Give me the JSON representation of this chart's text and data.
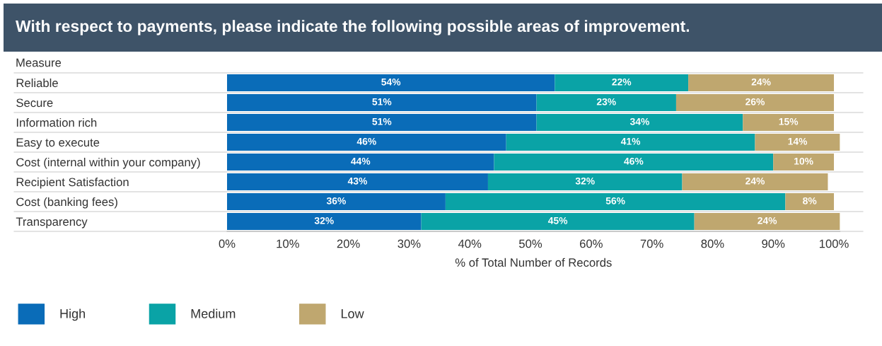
{
  "chart_data": {
    "type": "bar",
    "orientation": "horizontal",
    "stacked": true,
    "title": "With respect to payments, please indicate the following possible areas of improvement.",
    "ylabel": "Measure",
    "xlabel": "% of Total Number of Records",
    "categories": [
      "Reliable",
      "Secure",
      "Information rich",
      "Easy to execute",
      "Cost (internal within your company)",
      "Recipient Satisfaction",
      "Cost (banking fees)",
      "Transparency"
    ],
    "series": [
      {
        "name": "High",
        "color": "#0a6cb8",
        "values": [
          54,
          51,
          51,
          46,
          44,
          43,
          36,
          32
        ],
        "value_labels": [
          "54%",
          "51%",
          "51%",
          "46%",
          "44%",
          "43%",
          "36%",
          "32%"
        ]
      },
      {
        "name": "Medium",
        "color": "#0aa3a6",
        "values": [
          22,
          23,
          34,
          41,
          46,
          32,
          56,
          45
        ],
        "value_labels": [
          "22%",
          "23%",
          "34%",
          "41%",
          "46%",
          "32%",
          "56%",
          "45%"
        ]
      },
      {
        "name": "Low",
        "color": "#bfa76f",
        "values": [
          24,
          26,
          15,
          14,
          10,
          24,
          8,
          24
        ],
        "value_labels": [
          "24%",
          "26%",
          "15%",
          "14%",
          "10%",
          "24%",
          "8%",
          "24%"
        ]
      }
    ],
    "xlim": [
      0,
      101
    ],
    "xticks": [
      {
        "value": 0,
        "label": "0%"
      },
      {
        "value": 10,
        "label": "10%"
      },
      {
        "value": 20,
        "label": "20%"
      },
      {
        "value": 30,
        "label": "30%"
      },
      {
        "value": 40,
        "label": "40%"
      },
      {
        "value": 50,
        "label": "50%"
      },
      {
        "value": 60,
        "label": "60%"
      },
      {
        "value": 70,
        "label": "70%"
      },
      {
        "value": 80,
        "label": "80%"
      },
      {
        "value": 90,
        "label": "90%"
      },
      {
        "value": 100,
        "label": "100%"
      }
    ],
    "legend": "bottom left",
    "grid": false
  }
}
